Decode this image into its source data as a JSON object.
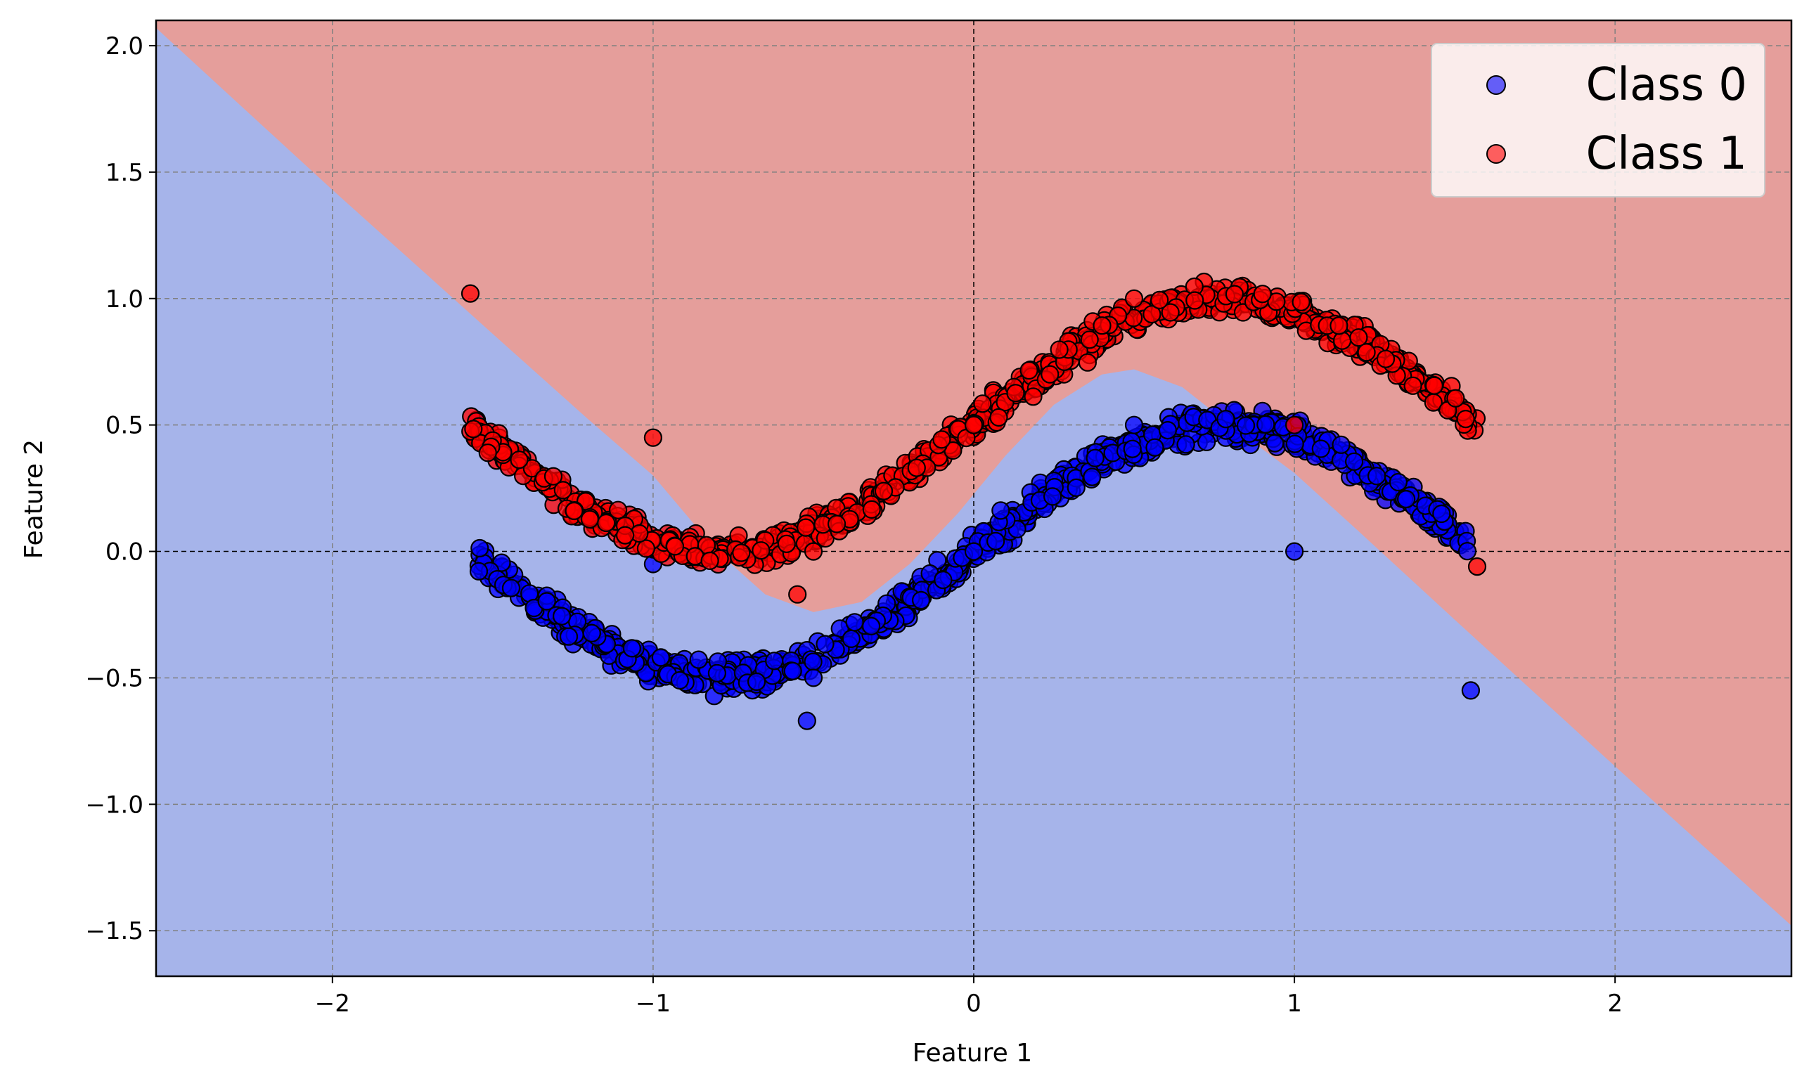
{
  "chart_data": {
    "type": "scatter",
    "title": "",
    "xlabel": "Feature 1",
    "ylabel": "Feature 2",
    "xlim": [
      -2.55,
      2.55
    ],
    "ylim": [
      -1.68,
      2.1
    ],
    "xticks": [
      -2,
      -1,
      0,
      1,
      2
    ],
    "xtick_labels": [
      "−2",
      "−1",
      "0",
      "1",
      "2"
    ],
    "yticks": [
      -1.5,
      -1.0,
      -0.5,
      0.0,
      0.5,
      1.0,
      1.5,
      2.0
    ],
    "ytick_labels": [
      "−1.5",
      "−1.0",
      "−0.5",
      "0.0",
      "0.5",
      "1.0",
      "1.5",
      "2.0"
    ],
    "grid": true,
    "legend_position": "top-right",
    "decision_regions": {
      "class_0_color": "#a6b4ea",
      "class_1_color": "#e59e9b",
      "boundary": [
        [
          -2.55,
          2.07
        ],
        [
          -2.0,
          1.43
        ],
        [
          -1.5,
          0.86
        ],
        [
          -1.2,
          0.52
        ],
        [
          -1.0,
          0.3
        ],
        [
          -0.8,
          0.0
        ],
        [
          -0.65,
          -0.17
        ],
        [
          -0.5,
          -0.24
        ],
        [
          -0.35,
          -0.2
        ],
        [
          -0.2,
          -0.05
        ],
        [
          -0.05,
          0.15
        ],
        [
          0.1,
          0.38
        ],
        [
          0.25,
          0.58
        ],
        [
          0.4,
          0.7
        ],
        [
          0.5,
          0.72
        ],
        [
          0.65,
          0.65
        ],
        [
          0.8,
          0.5
        ],
        [
          1.0,
          0.31
        ],
        [
          1.2,
          0.08
        ],
        [
          1.5,
          -0.27
        ],
        [
          2.0,
          -0.85
        ],
        [
          2.55,
          -1.48
        ]
      ]
    },
    "series": [
      {
        "name": "Class 0",
        "color": "#0000ff",
        "alpha": 0.75,
        "edgecolor": "#000000",
        "generator": "x = -1.55..1.55 (n=900), y = 0.5*sin(2x) + noise(±0.09)",
        "points_sample": [
          [
            -1.55,
            0.52
          ],
          [
            -1.0,
            -0.05
          ],
          [
            -0.5,
            -0.5
          ],
          [
            -0.52,
            -0.67
          ],
          [
            0.0,
            0.0
          ],
          [
            0.5,
            0.5
          ],
          [
            1.0,
            0.0
          ],
          [
            1.55,
            -0.55
          ]
        ]
      },
      {
        "name": "Class 1",
        "color": "#ff0000",
        "alpha": 0.75,
        "edgecolor": "#000000",
        "generator": "x = -1.57..1.57 (n=900), y = 0.5*sin(2x) + 0.5 + noise(±0.09)",
        "points_sample": [
          [
            -1.57,
            1.02
          ],
          [
            -1.0,
            0.45
          ],
          [
            -0.5,
            0.0
          ],
          [
            -0.55,
            -0.17
          ],
          [
            0.0,
            0.5
          ],
          [
            0.5,
            1.0
          ],
          [
            1.0,
            0.5
          ],
          [
            1.57,
            -0.06
          ]
        ]
      }
    ]
  }
}
